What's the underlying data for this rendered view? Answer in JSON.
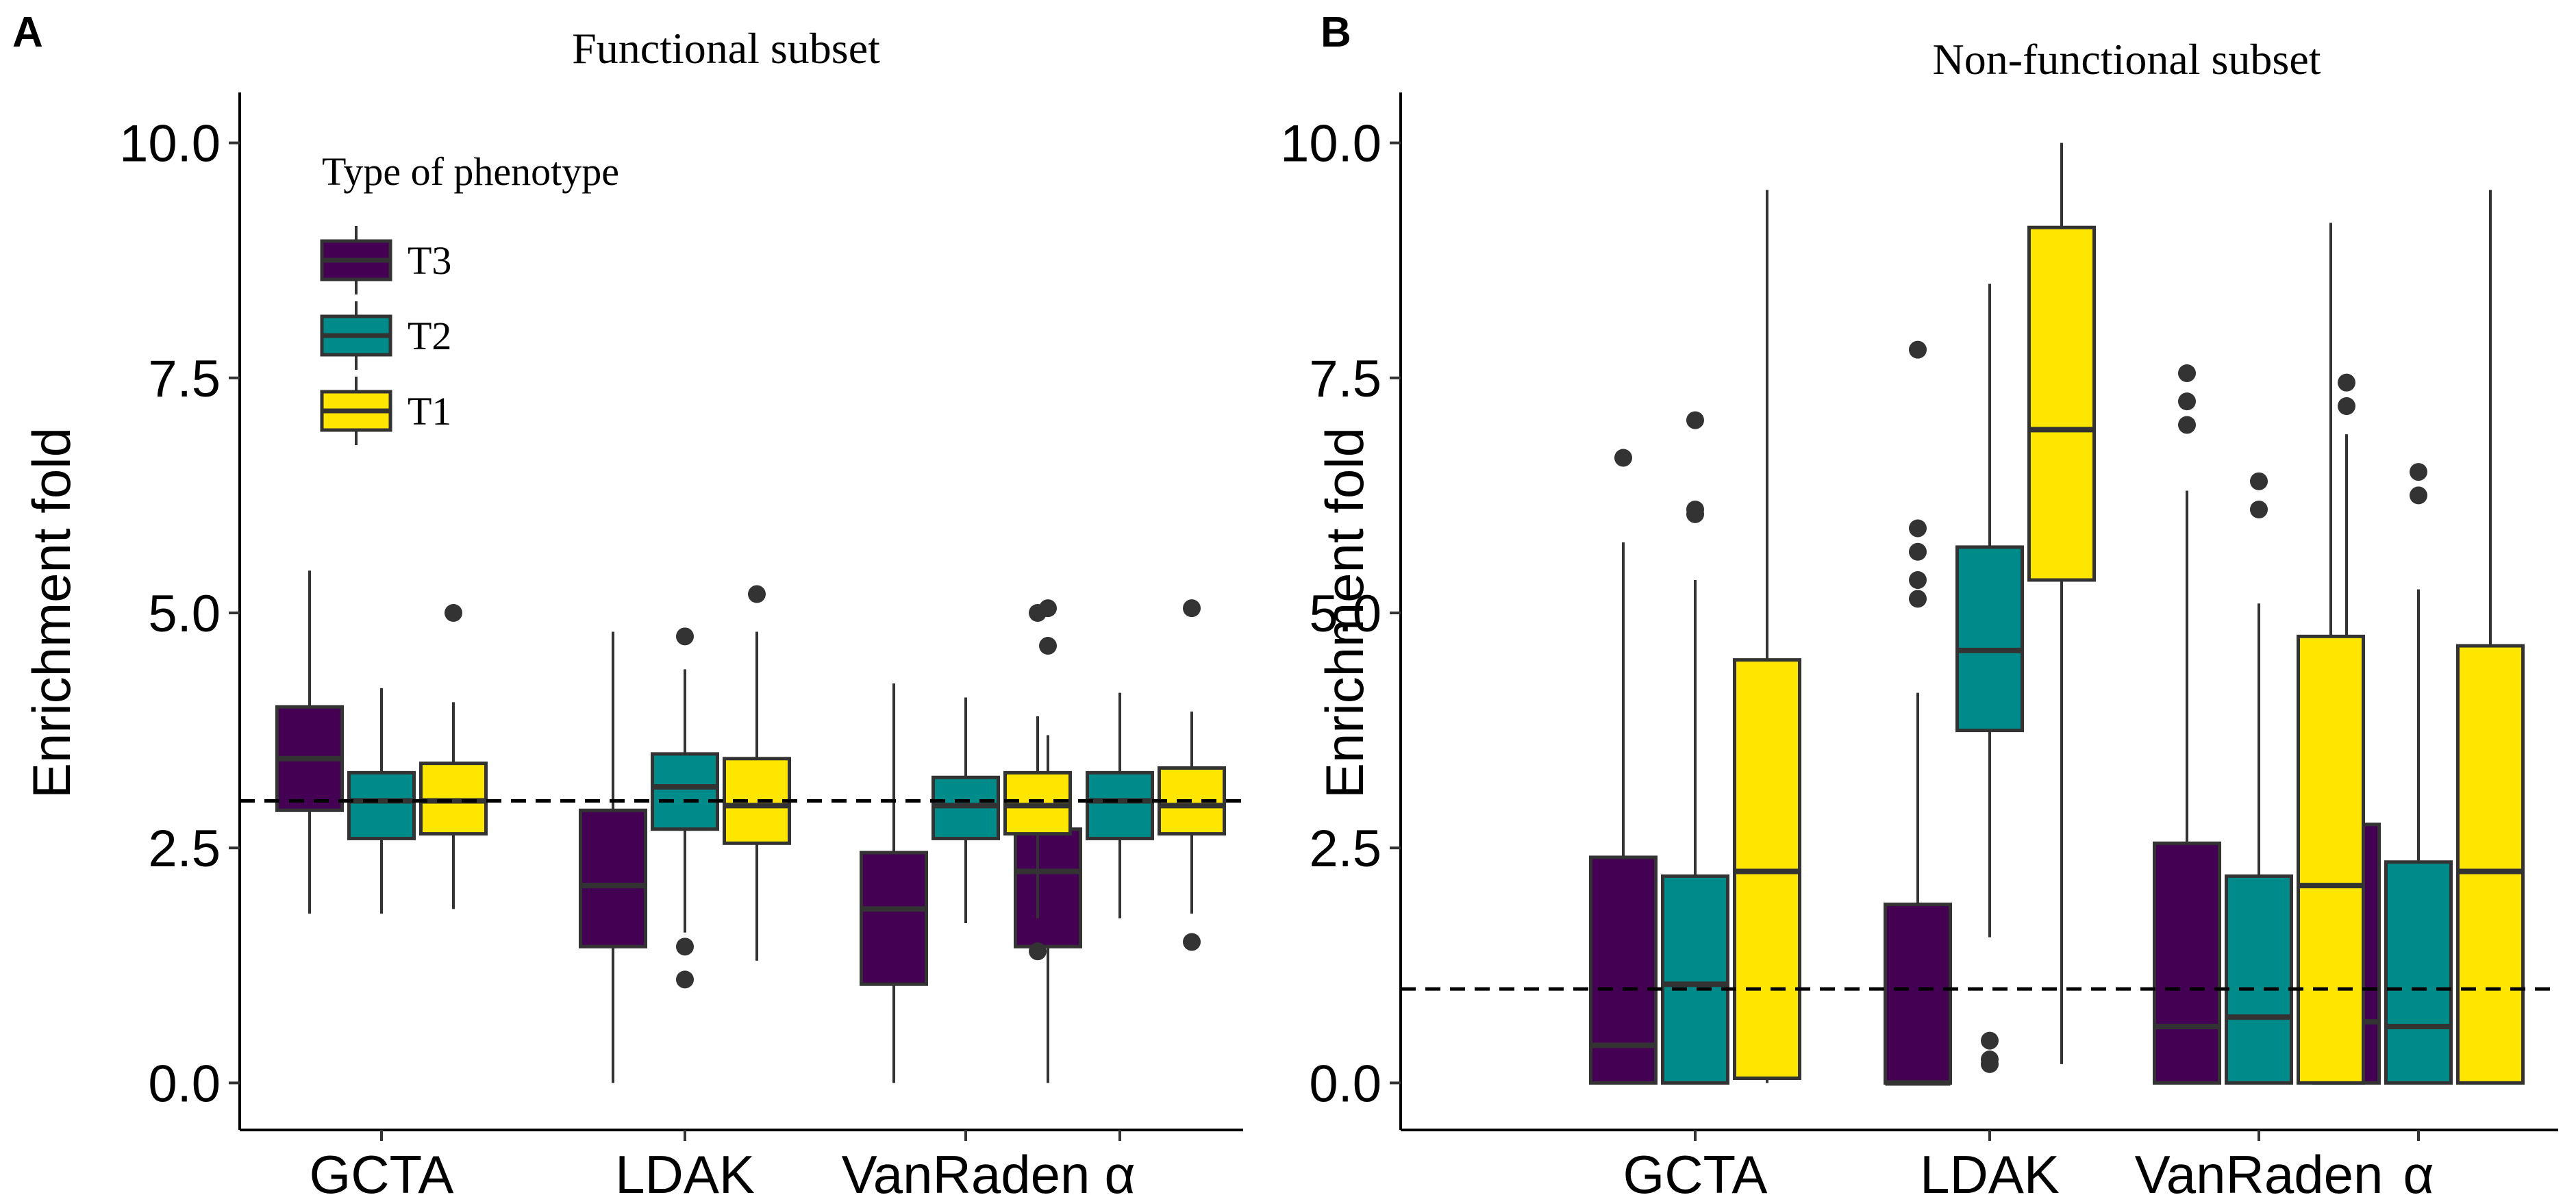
{
  "colors": {
    "T3": "#440154",
    "T2": "#008B8B",
    "T1": "#FFE600",
    "line": "#333333",
    "ref": "#000000"
  },
  "legend": {
    "title": "Type of phenotype",
    "entries": [
      {
        "key": "T3",
        "label": "T3"
      },
      {
        "key": "T2",
        "label": "T2"
      },
      {
        "key": "T1",
        "label": "T1"
      }
    ]
  },
  "chart_data": [
    {
      "panel_label": "A",
      "type": "box",
      "title": "Functional subset",
      "ylabel": "Enrichment fold",
      "xlabel": "",
      "ylim": [
        -0.5,
        10.5
      ],
      "yticks": [
        0.0,
        2.5,
        5.0,
        7.5,
        10.0
      ],
      "ytick_labels": [
        "0.0",
        "2.5",
        "5.0",
        "7.5",
        "10.0"
      ],
      "reference_line": 3.0,
      "legend_position": "top-left",
      "categories": [
        "GCTA",
        "LDAK",
        "VanRaden",
        "α"
      ],
      "series": [
        {
          "name": "T3",
          "boxes": [
            {
              "min": 1.8,
              "q1": 2.9,
              "median": 3.45,
              "q3": 4.0,
              "max": 5.45,
              "outliers": []
            },
            {
              "min": 0.0,
              "q1": 1.45,
              "median": 2.1,
              "q3": 2.9,
              "max": 4.8,
              "outliers": []
            },
            {
              "min": 0.0,
              "q1": 1.05,
              "median": 1.85,
              "q3": 2.45,
              "max": 4.25,
              "outliers": []
            },
            {
              "min": 0.0,
              "q1": 1.45,
              "median": 2.25,
              "q3": 2.7,
              "max": 3.7,
              "outliers": [
                4.65,
                5.05
              ]
            }
          ]
        },
        {
          "name": "T2",
          "boxes": [
            {
              "min": 1.8,
              "q1": 2.6,
              "median": 3.0,
              "q3": 3.3,
              "max": 4.2,
              "outliers": []
            },
            {
              "min": 1.6,
              "q1": 2.7,
              "median": 3.15,
              "q3": 3.5,
              "max": 4.4,
              "outliers": [
                1.1,
                1.45,
                4.75
              ]
            },
            {
              "min": 1.7,
              "q1": 2.6,
              "median": 2.95,
              "q3": 3.25,
              "max": 4.1,
              "outliers": []
            },
            {
              "min": 1.75,
              "q1": 2.6,
              "median": 3.0,
              "q3": 3.3,
              "max": 4.15,
              "outliers": []
            }
          ]
        },
        {
          "name": "T1",
          "boxes": [
            {
              "min": 1.85,
              "q1": 2.65,
              "median": 3.0,
              "q3": 3.4,
              "max": 4.05,
              "outliers": [
                5.0
              ]
            },
            {
              "min": 1.3,
              "q1": 2.55,
              "median": 2.95,
              "q3": 3.45,
              "max": 4.8,
              "outliers": [
                5.2
              ]
            },
            {
              "min": 1.75,
              "q1": 2.65,
              "median": 2.95,
              "q3": 3.3,
              "max": 3.9,
              "outliers": [
                1.4,
                5.0
              ]
            },
            {
              "min": 1.8,
              "q1": 2.65,
              "median": 2.95,
              "q3": 3.35,
              "max": 3.95,
              "outliers": [
                1.5,
                5.05
              ]
            }
          ]
        }
      ]
    },
    {
      "panel_label": "B",
      "type": "box",
      "title": "Non-functional subset",
      "ylabel": "Enrichment fold",
      "xlabel": "",
      "ylim": [
        -0.5,
        10.5
      ],
      "yticks": [
        0.0,
        2.5,
        5.0,
        7.5,
        10.0
      ],
      "ytick_labels": [
        "0.0",
        "2.5",
        "5.0",
        "7.5",
        "10.0"
      ],
      "reference_line": 1.0,
      "legend_position": "none",
      "categories": [
        "GCTA",
        "LDAK",
        "VanRaden",
        "α"
      ],
      "series": [
        {
          "name": "T3",
          "boxes": [
            {
              "min": 0.0,
              "q1": 0.0,
              "median": 0.4,
              "q3": 2.4,
              "max": 5.75,
              "outliers": [
                6.65
              ]
            },
            {
              "min": 0.0,
              "q1": 0.0,
              "median": 0.0,
              "q3": 1.9,
              "max": 4.15,
              "outliers": [
                5.15,
                5.35,
                5.65,
                5.9,
                7.8
              ]
            },
            {
              "min": 0.0,
              "q1": 0.0,
              "median": 0.6,
              "q3": 2.55,
              "max": 6.3,
              "outliers": [
                7.0,
                7.25,
                7.55
              ]
            },
            {
              "min": 0.0,
              "q1": 0.0,
              "median": 0.65,
              "q3": 2.75,
              "max": 6.9,
              "outliers": [
                7.2,
                7.45
              ]
            }
          ]
        },
        {
          "name": "T2",
          "boxes": [
            {
              "min": 0.0,
              "q1": 0.0,
              "median": 1.05,
              "q3": 2.2,
              "max": 5.35,
              "outliers": [
                6.05,
                6.1,
                7.05
              ]
            },
            {
              "min": 1.55,
              "q1": 3.75,
              "median": 4.6,
              "q3": 5.7,
              "max": 8.5,
              "outliers": [
                0.2,
                0.25,
                0.45
              ]
            },
            {
              "min": 0.0,
              "q1": 0.0,
              "median": 0.7,
              "q3": 2.2,
              "max": 5.1,
              "outliers": [
                6.1,
                6.4
              ]
            },
            {
              "min": 0.0,
              "q1": 0.0,
              "median": 0.6,
              "q3": 2.35,
              "max": 5.25,
              "outliers": [
                6.25,
                6.5
              ]
            }
          ]
        },
        {
          "name": "T1",
          "boxes": [
            {
              "min": 0.0,
              "q1": 0.05,
              "median": 2.25,
              "q3": 4.5,
              "max": 9.5,
              "outliers": []
            },
            {
              "min": 0.2,
              "q1": 5.35,
              "median": 6.95,
              "q3": 9.1,
              "max": 10.0,
              "outliers": []
            },
            {
              "min": 0.0,
              "q1": 0.0,
              "median": 2.1,
              "q3": 4.75,
              "max": 9.15,
              "outliers": []
            },
            {
              "min": 0.0,
              "q1": 0.0,
              "median": 2.25,
              "q3": 4.65,
              "max": 9.5,
              "outliers": []
            }
          ]
        }
      ]
    }
  ]
}
